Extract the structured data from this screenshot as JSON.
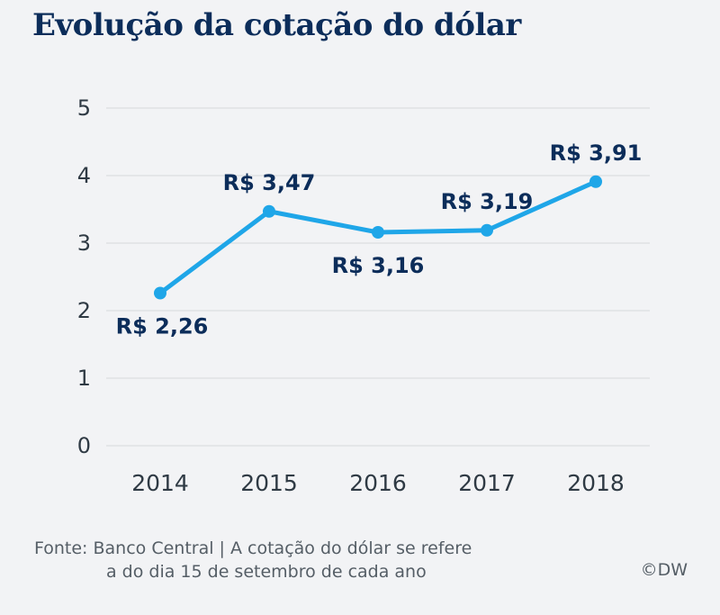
{
  "title": "Evolução da cotação do dólar",
  "source": {
    "line1": "Fonte: Banco Central | A cotação do dólar se refere",
    "line2": "a do dia 15 de setembro de cada ano"
  },
  "credit": "©DW",
  "colors": {
    "line": "#1fa6e8",
    "label": "#0c2d5a",
    "grid": "#d5d8dc",
    "axis_text": "#2f3a44"
  },
  "chart_data": {
    "type": "line",
    "categories": [
      "2014",
      "2015",
      "2016",
      "2017",
      "2018"
    ],
    "values": [
      2.26,
      3.47,
      3.16,
      3.19,
      3.91
    ],
    "data_labels": [
      "R$ 2,26",
      "R$ 3,47",
      "R$ 3,16",
      "R$ 3,19",
      "R$ 3,91"
    ],
    "label_positions": [
      "below",
      "above",
      "below",
      "above",
      "above"
    ],
    "yticks": [
      "0",
      "1",
      "2",
      "3",
      "4",
      "5"
    ],
    "ylim": [
      0,
      5
    ],
    "grid": true
  }
}
